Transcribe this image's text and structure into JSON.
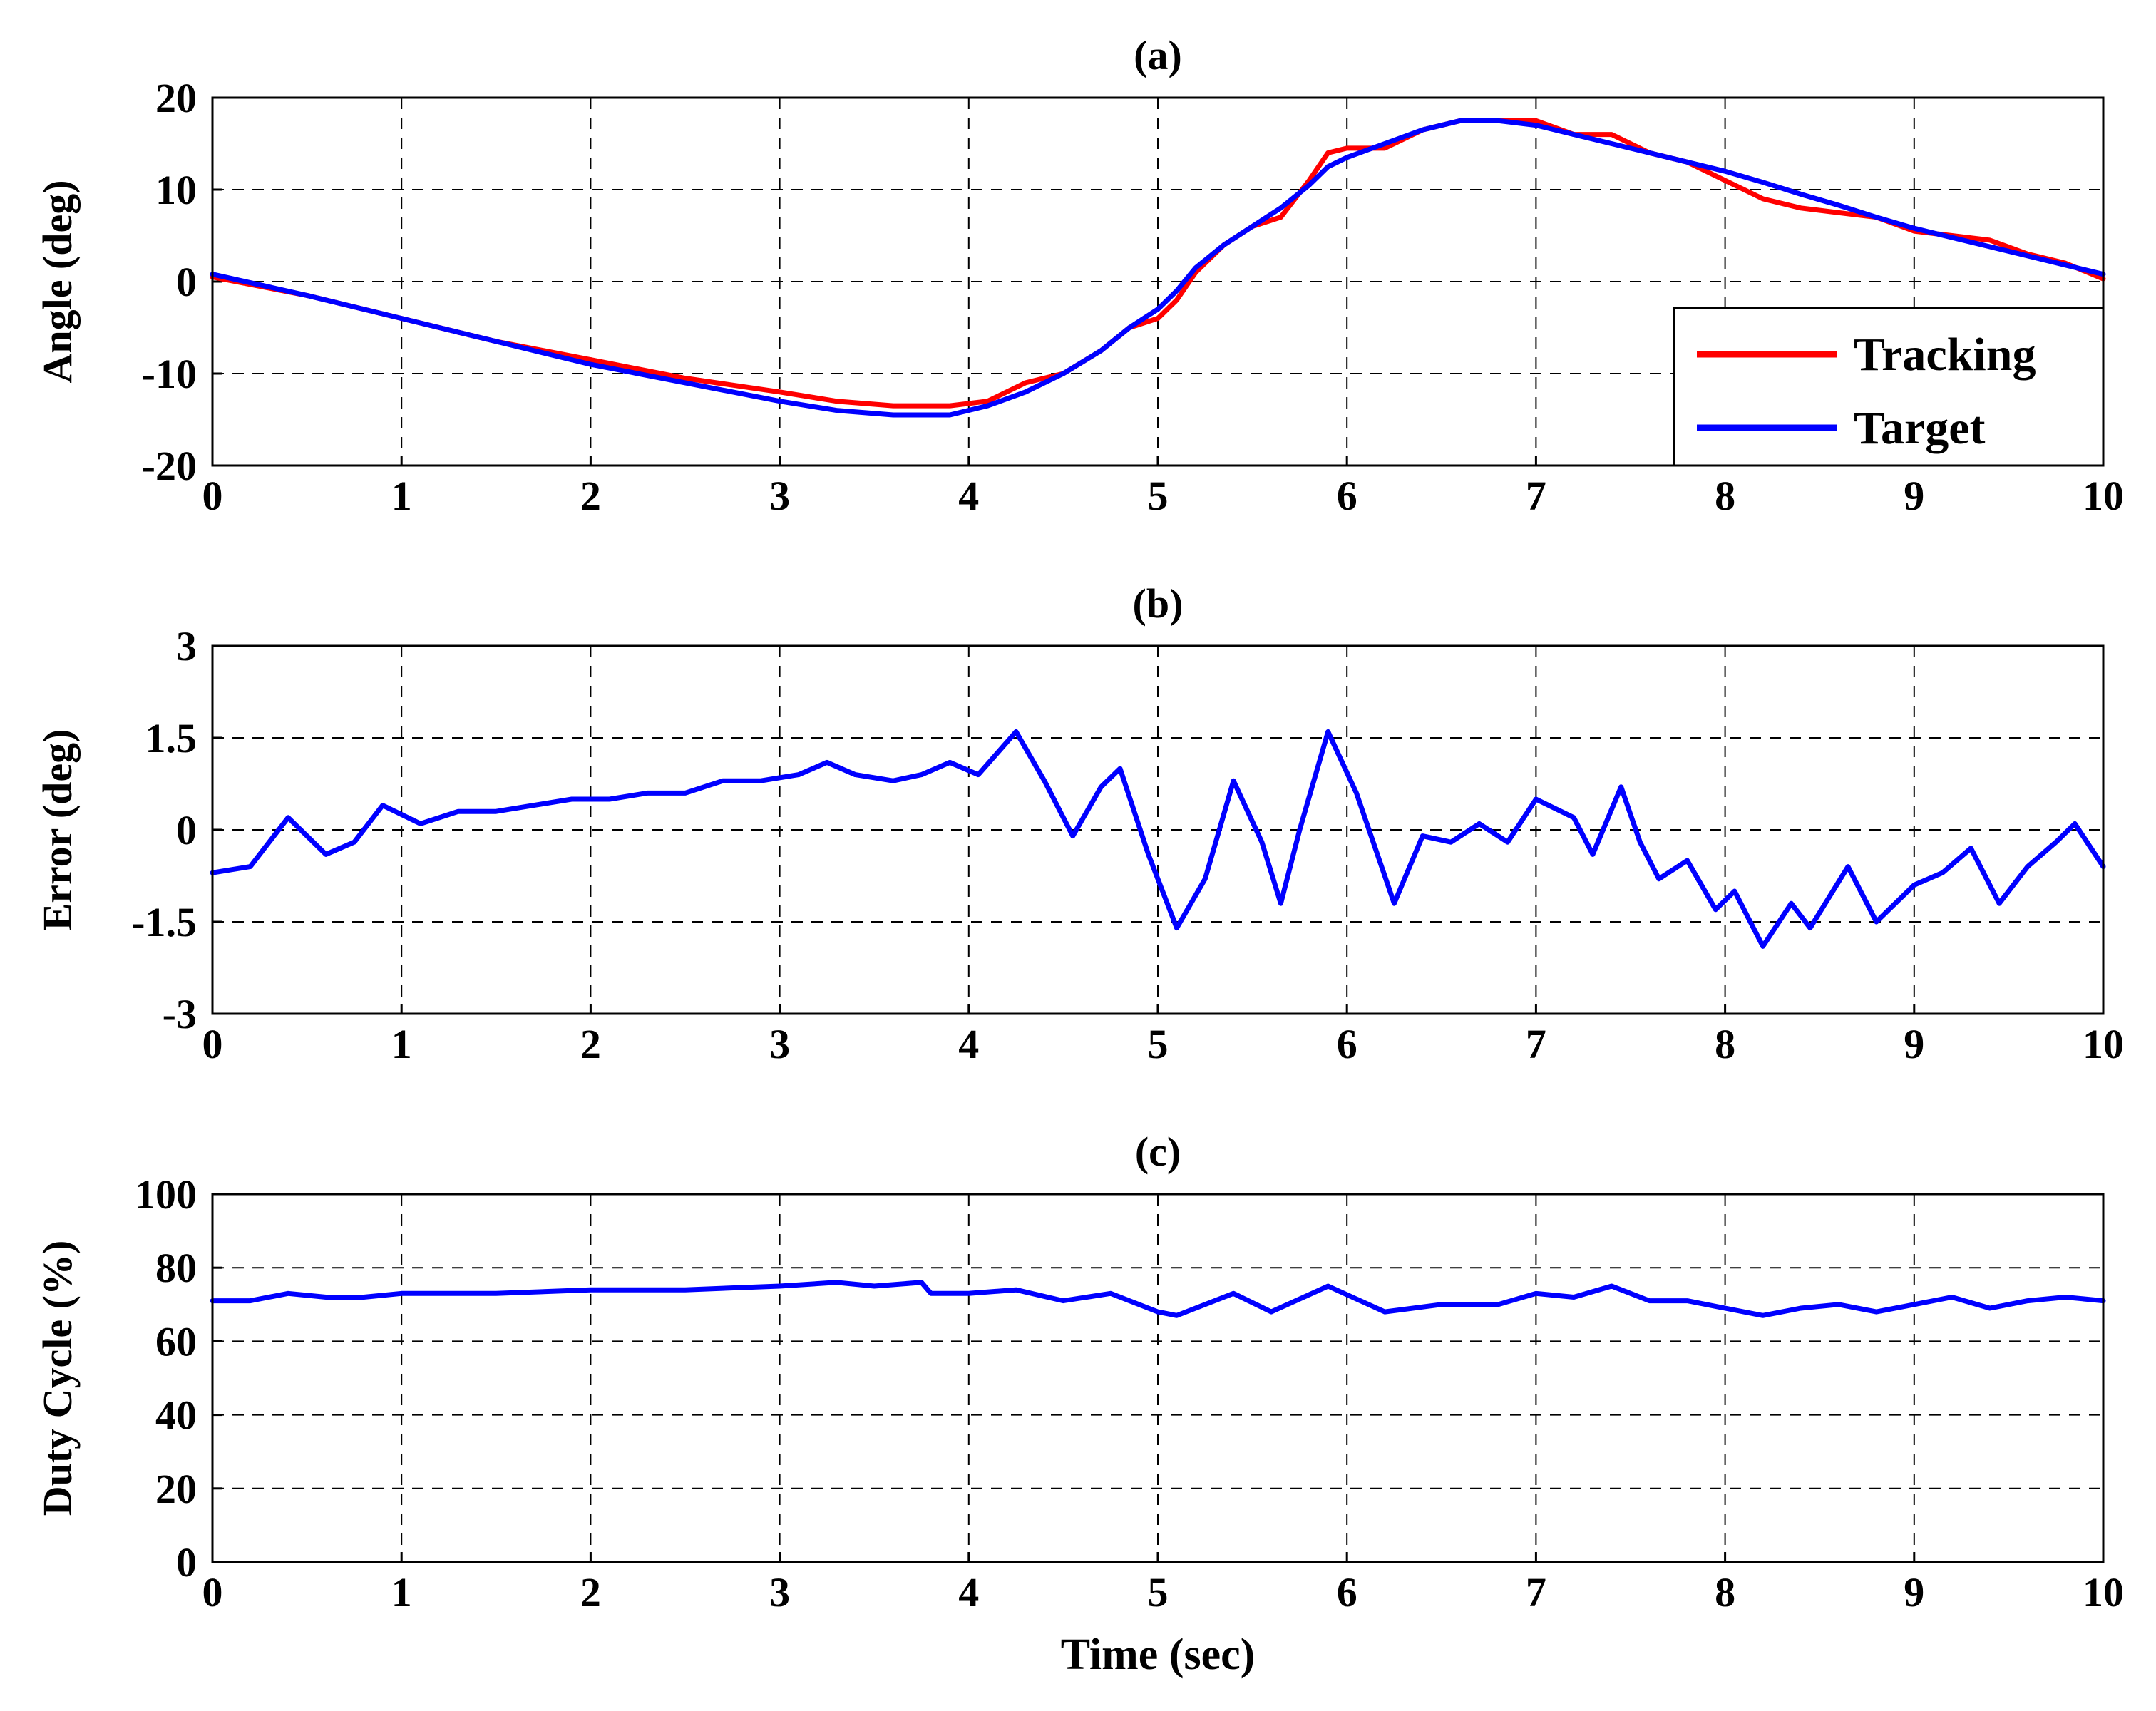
{
  "colors": {
    "tracking": "#ff0000",
    "target": "#0000ff",
    "error": "#0000ff",
    "duty": "#0000ff"
  },
  "chart_data": [
    {
      "type": "line",
      "title": "(a)",
      "ylabel": "Angle (deg)",
      "xlabel": "",
      "xlim": [
        0,
        10
      ],
      "ylim": [
        -20,
        20
      ],
      "xticks": [
        0,
        1,
        2,
        3,
        4,
        5,
        6,
        7,
        8,
        9,
        10
      ],
      "yticks": [
        20,
        10,
        0,
        -10,
        -20
      ],
      "grid": true,
      "legend": {
        "position": "bottom-right",
        "entries": [
          "Tracking",
          "Target"
        ]
      },
      "series": [
        {
          "name": "Tracking",
          "color": "#ff0000",
          "x": [
            0,
            0.5,
            1,
            1.5,
            2,
            2.5,
            3,
            3.3,
            3.6,
            3.9,
            4.1,
            4.3,
            4.5,
            4.7,
            4.85,
            5,
            5.1,
            5.2,
            5.35,
            5.5,
            5.65,
            5.8,
            5.9,
            6,
            6.2,
            6.4,
            6.6,
            6.8,
            7,
            7.2,
            7.4,
            7.6,
            7.8,
            8,
            8.2,
            8.4,
            8.6,
            8.8,
            9,
            9.2,
            9.4,
            9.6,
            9.8,
            10
          ],
          "values": [
            0.5,
            -1.5,
            -4,
            -6.5,
            -8.5,
            -10.5,
            -12,
            -13,
            -13.5,
            -13.5,
            -13,
            -11,
            -10,
            -7.5,
            -5,
            -4,
            -2,
            1,
            4,
            6,
            7,
            11,
            14,
            14.5,
            14.5,
            16.5,
            17.5,
            17.5,
            17.5,
            16,
            16,
            14,
            13,
            11,
            9,
            8,
            7.5,
            7,
            5.5,
            5,
            4.5,
            3,
            2,
            0.3
          ]
        },
        {
          "name": "Target",
          "color": "#0000ff",
          "x": [
            0,
            0.5,
            1,
            1.5,
            2,
            2.5,
            3,
            3.3,
            3.6,
            3.9,
            4.1,
            4.3,
            4.5,
            4.7,
            4.85,
            5,
            5.1,
            5.2,
            5.35,
            5.5,
            5.65,
            5.8,
            5.9,
            6,
            6.2,
            6.4,
            6.6,
            6.8,
            7,
            7.2,
            7.4,
            7.6,
            7.8,
            8,
            8.2,
            8.4,
            8.6,
            8.8,
            9,
            9.2,
            9.4,
            9.6,
            9.8,
            10
          ],
          "values": [
            0.8,
            -1.5,
            -4,
            -6.5,
            -9,
            -11,
            -13,
            -14,
            -14.5,
            -14.5,
            -13.5,
            -12,
            -10,
            -7.5,
            -5,
            -3,
            -1,
            1.5,
            4,
            6,
            8,
            10.5,
            12.5,
            13.5,
            15,
            16.5,
            17.5,
            17.5,
            17,
            16,
            15,
            14,
            13,
            12,
            10.8,
            9.5,
            8.3,
            7,
            5.8,
            4.8,
            3.8,
            2.8,
            1.8,
            0.8
          ]
        }
      ]
    },
    {
      "type": "line",
      "title": "(b)",
      "ylabel": "Error (deg)",
      "xlabel": "",
      "xlim": [
        0,
        10
      ],
      "ylim": [
        -3,
        3
      ],
      "xticks": [
        0,
        1,
        2,
        3,
        4,
        5,
        6,
        7,
        8,
        9,
        10
      ],
      "yticks": [
        "3",
        "1.5",
        "0",
        "-1.5",
        "-3"
      ],
      "grid": true,
      "series": [
        {
          "name": "Error",
          "color": "#0000ff",
          "x": [
            0,
            0.2,
            0.4,
            0.6,
            0.75,
            0.9,
            1.1,
            1.3,
            1.5,
            1.7,
            1.9,
            2.1,
            2.3,
            2.5,
            2.7,
            2.9,
            3.1,
            3.25,
            3.4,
            3.6,
            3.75,
            3.9,
            4.05,
            4.25,
            4.4,
            4.55,
            4.7,
            4.8,
            4.95,
            5.1,
            5.25,
            5.4,
            5.55,
            5.65,
            5.75,
            5.9,
            6.05,
            6.25,
            6.4,
            6.55,
            6.7,
            6.85,
            7.0,
            7.2,
            7.3,
            7.45,
            7.55,
            7.65,
            7.8,
            7.95,
            8.05,
            8.2,
            8.35,
            8.45,
            8.65,
            8.8,
            9.0,
            9.15,
            9.3,
            9.45,
            9.6,
            9.75,
            9.85,
            10
          ],
          "values": [
            -0.7,
            -0.6,
            0.2,
            -0.4,
            -0.2,
            0.4,
            0.1,
            0.3,
            0.3,
            0.4,
            0.5,
            0.5,
            0.6,
            0.6,
            0.8,
            0.8,
            0.9,
            1.1,
            0.9,
            0.8,
            0.9,
            1.1,
            0.9,
            1.6,
            0.8,
            -0.1,
            0.7,
            1.0,
            -0.4,
            -1.6,
            -0.8,
            0.8,
            -0.2,
            -1.2,
            0.0,
            1.6,
            0.6,
            -1.2,
            -0.1,
            -0.2,
            0.1,
            -0.2,
            0.5,
            0.2,
            -0.4,
            0.7,
            -0.2,
            -0.8,
            -0.5,
            -1.3,
            -1.0,
            -1.9,
            -1.2,
            -1.6,
            -0.6,
            -1.5,
            -0.9,
            -0.7,
            -0.3,
            -1.2,
            -0.6,
            -0.2,
            0.1,
            -0.6
          ]
        }
      ]
    },
    {
      "type": "line",
      "title": "(c)",
      "ylabel": "Duty Cycle (%)",
      "xlabel": "Time (sec)",
      "xlim": [
        0,
        10
      ],
      "ylim": [
        0,
        100
      ],
      "xticks": [
        0,
        1,
        2,
        3,
        4,
        5,
        6,
        7,
        8,
        9,
        10
      ],
      "yticks": [
        100,
        80,
        60,
        40,
        20,
        0
      ],
      "grid": true,
      "series": [
        {
          "name": "Duty Cycle",
          "color": "#0000ff",
          "x": [
            0,
            0.2,
            0.4,
            0.6,
            0.8,
            1.0,
            1.5,
            2.0,
            2.5,
            3.0,
            3.3,
            3.5,
            3.75,
            3.8,
            4.0,
            4.25,
            4.5,
            4.75,
            5.0,
            5.1,
            5.4,
            5.6,
            5.9,
            6.2,
            6.5,
            6.8,
            7.0,
            7.2,
            7.4,
            7.6,
            7.8,
            8.0,
            8.2,
            8.4,
            8.6,
            8.8,
            9.0,
            9.2,
            9.4,
            9.6,
            9.8,
            10
          ],
          "values": [
            71,
            71,
            73,
            72,
            72,
            73,
            73,
            74,
            74,
            75,
            76,
            75,
            76,
            73,
            73,
            74,
            71,
            73,
            68,
            67,
            73,
            68,
            75,
            68,
            70,
            70,
            73,
            72,
            75,
            71,
            71,
            69,
            67,
            69,
            70,
            68,
            70,
            72,
            69,
            71,
            72,
            71
          ]
        }
      ]
    }
  ]
}
